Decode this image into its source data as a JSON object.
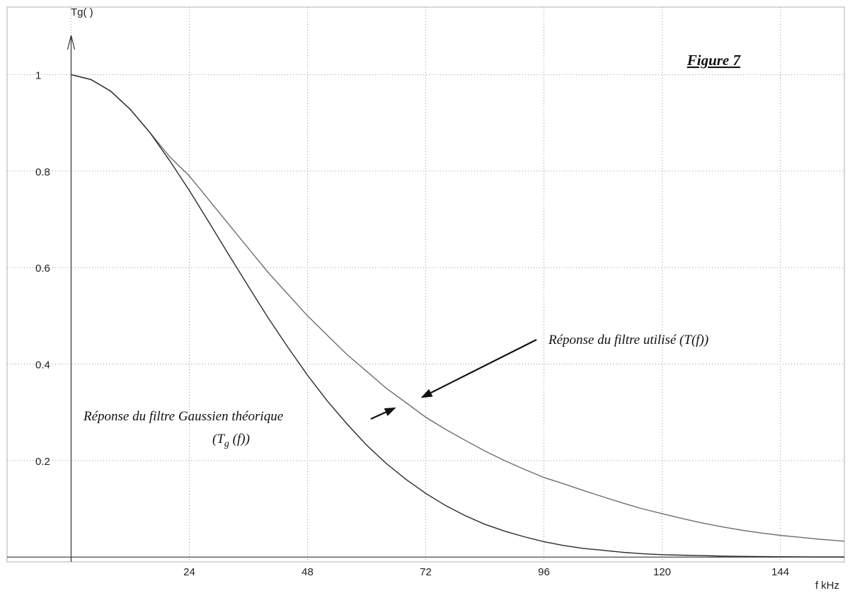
{
  "chart_data": {
    "type": "line",
    "title": "Figure 7",
    "xlabel": "f kHz",
    "ylabel": "Tg( )",
    "xlim": [
      -13,
      157
    ],
    "ylim": [
      -0.01,
      1.14
    ],
    "xticks": [
      24,
      48,
      72,
      96,
      120,
      144
    ],
    "yticks": [
      0.2,
      0.4,
      0.6,
      0.8,
      1
    ],
    "x_grid": [
      0,
      24,
      48,
      72,
      96,
      120,
      144
    ],
    "grid": true,
    "legend": "none",
    "series": [
      {
        "color": "#6e6e6e",
        "x": [
          0,
          4,
          8,
          12,
          16,
          20,
          24,
          28,
          32,
          36,
          40,
          44,
          48,
          52,
          56,
          60,
          64,
          68,
          72,
          76,
          80,
          84,
          88,
          92,
          96,
          100,
          104,
          108,
          112,
          116,
          120,
          124,
          128,
          132,
          136,
          140,
          144,
          148,
          152,
          157
        ],
        "y": [
          1.0,
          0.99,
          0.966,
          0.928,
          0.88,
          0.83,
          0.79,
          0.74,
          0.69,
          0.64,
          0.59,
          0.545,
          0.5,
          0.46,
          0.42,
          0.385,
          0.35,
          0.32,
          0.29,
          0.265,
          0.242,
          0.22,
          0.2,
          0.182,
          0.165,
          0.152,
          0.138,
          0.125,
          0.112,
          0.1,
          0.09,
          0.08,
          0.071,
          0.063,
          0.056,
          0.05,
          0.045,
          0.041,
          0.037,
          0.033
        ]
      },
      {
        "color": "#2a2a2a",
        "x": [
          0,
          4,
          8,
          12,
          16,
          20,
          24,
          28,
          32,
          36,
          40,
          44,
          48,
          52,
          56,
          60,
          64,
          68,
          72,
          76,
          80,
          84,
          88,
          92,
          96,
          100,
          104,
          108,
          112,
          116,
          120,
          124,
          128,
          132,
          136,
          140,
          144,
          148,
          152,
          157
        ],
        "y": [
          1.0,
          0.99,
          0.966,
          0.928,
          0.88,
          0.822,
          0.76,
          0.694,
          0.627,
          0.561,
          0.496,
          0.435,
          0.377,
          0.324,
          0.276,
          0.232,
          0.194,
          0.161,
          0.132,
          0.107,
          0.086,
          0.068,
          0.054,
          0.042,
          0.032,
          0.024,
          0.018,
          0.014,
          0.01,
          0.007,
          0.005,
          0.004,
          0.003,
          0.002,
          0.0015,
          0.001,
          0.0007,
          0.0005,
          0.0003,
          0.0002
        ]
      }
    ],
    "annotations": [
      {
        "text": "Réponse du filtre utilisé (T(f))",
        "arrow_to": [
          71,
          0.33
        ]
      },
      {
        "text": "Réponse du filtre Gaussien théorique",
        "text2": "(T",
        "sub": "g",
        "text3": " (f))",
        "arrow_to": [
          66,
          0.31
        ]
      }
    ]
  }
}
